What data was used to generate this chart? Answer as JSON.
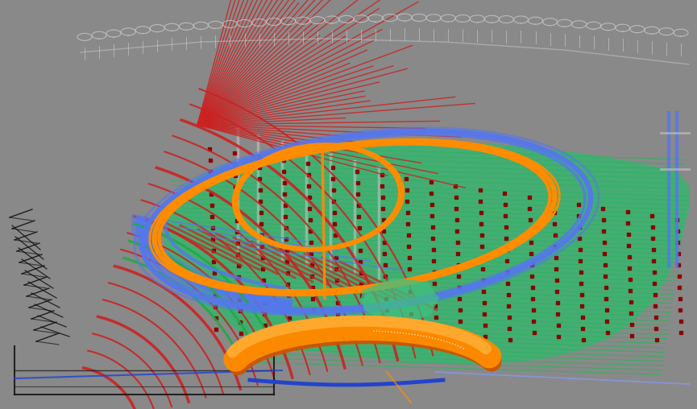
{
  "bg": "#898989",
  "figsize": [
    8.65,
    5.08
  ],
  "dpi": 100,
  "green_fill": "#3cb371",
  "green_fill2": "#40c080",
  "green_line": "#2db360",
  "dark_red": "#8b0000",
  "red_line": "#cc2222",
  "orange": "#ff8c00",
  "orange_dark": "#cc5500",
  "blue": "#5577ee",
  "blue_light": "#8899ff",
  "blue_dark": "#2244cc",
  "white_loop": "#cccccc",
  "gray_col": "#c8c8c8",
  "black": "#111111",
  "green_arc": "#22aa44"
}
